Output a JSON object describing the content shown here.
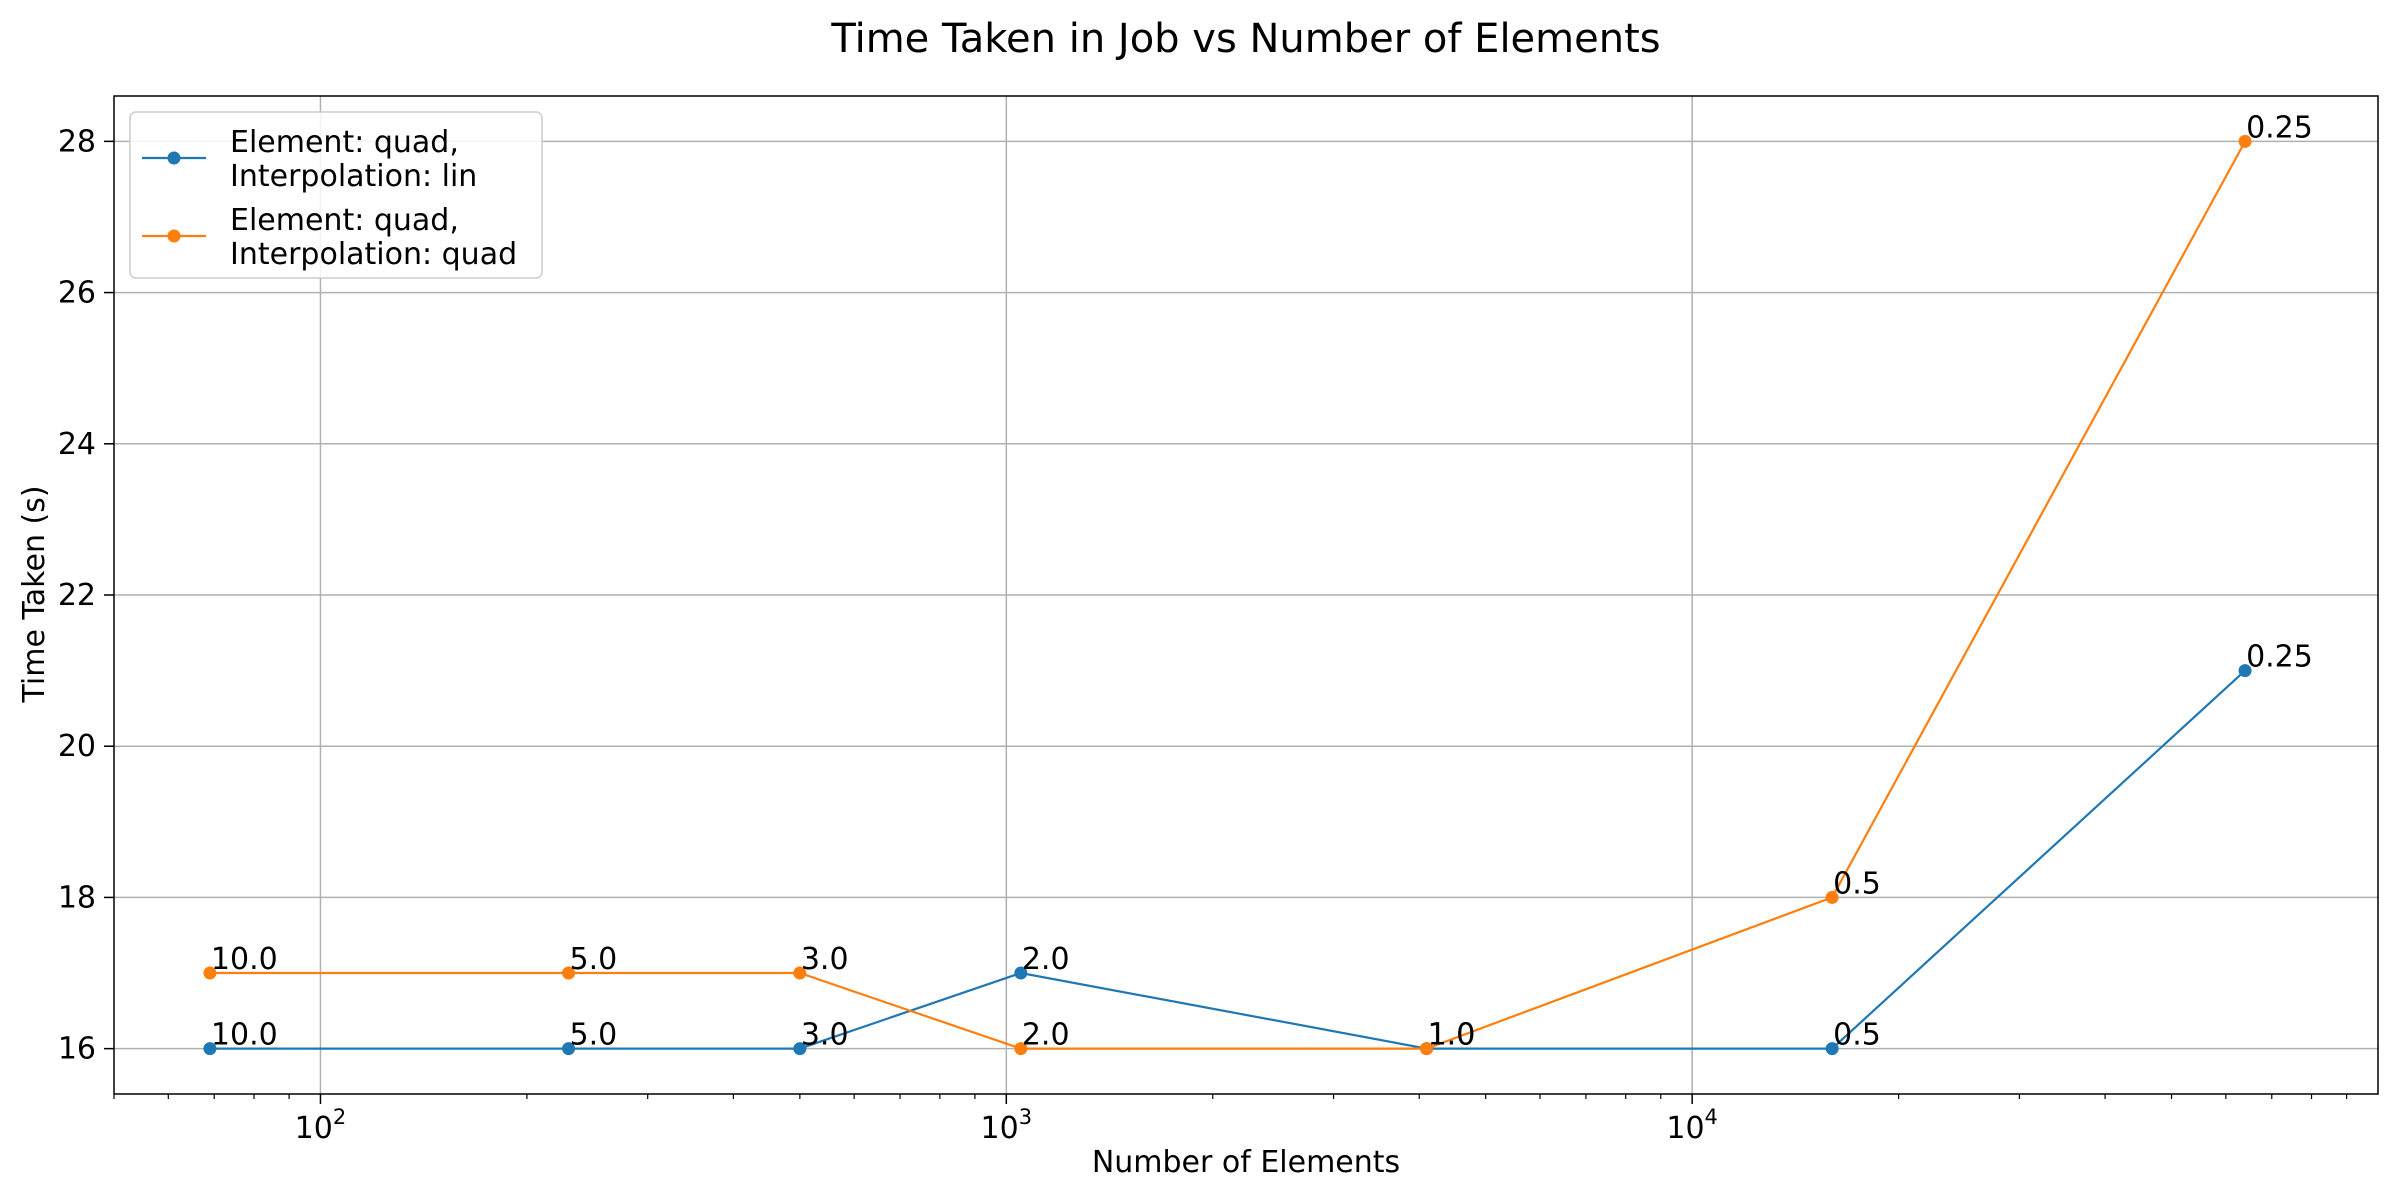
{
  "chart_data": {
    "type": "line",
    "title": "Time Taken in Job vs Number of Elements",
    "xlabel": "Number of Elements",
    "ylabel": "Time Taken (s)",
    "xscale": "log",
    "xlim": [
      50,
      100000
    ],
    "ylim": [
      15.4,
      28.6
    ],
    "grid": true,
    "legend_position": "top-left",
    "x_ticks": [
      {
        "value": 100,
        "base": "10",
        "exp": "2"
      },
      {
        "value": 1000,
        "base": "10",
        "exp": "3"
      },
      {
        "value": 10000,
        "base": "10",
        "exp": "4"
      }
    ],
    "y_ticks": [
      16,
      18,
      20,
      22,
      24,
      26,
      28
    ],
    "y_tick_labels": [
      "16",
      "18",
      "20",
      "22",
      "24",
      "26",
      "28"
    ],
    "series": [
      {
        "name": "Element: quad,\nInterpolation: lin",
        "color": "#1f77b4",
        "x": [
          69,
          230,
          500,
          1050,
          4100,
          16000,
          64000
        ],
        "y": [
          16,
          16,
          16,
          17,
          16,
          16,
          21
        ],
        "labels": [
          "10.0",
          "5.0",
          "3.0",
          "2.0",
          "1.0",
          "0.5",
          "0.25"
        ]
      },
      {
        "name": "Element: quad,\nInterpolation: quad",
        "color": "#ff7f0e",
        "x": [
          69,
          230,
          500,
          1050,
          4100,
          16000,
          64000
        ],
        "y": [
          17,
          17,
          17,
          16,
          16,
          18,
          28
        ],
        "labels": [
          "10.0",
          "5.0",
          "3.0",
          "2.0",
          "1.0",
          "0.5",
          "0.25"
        ]
      }
    ]
  }
}
